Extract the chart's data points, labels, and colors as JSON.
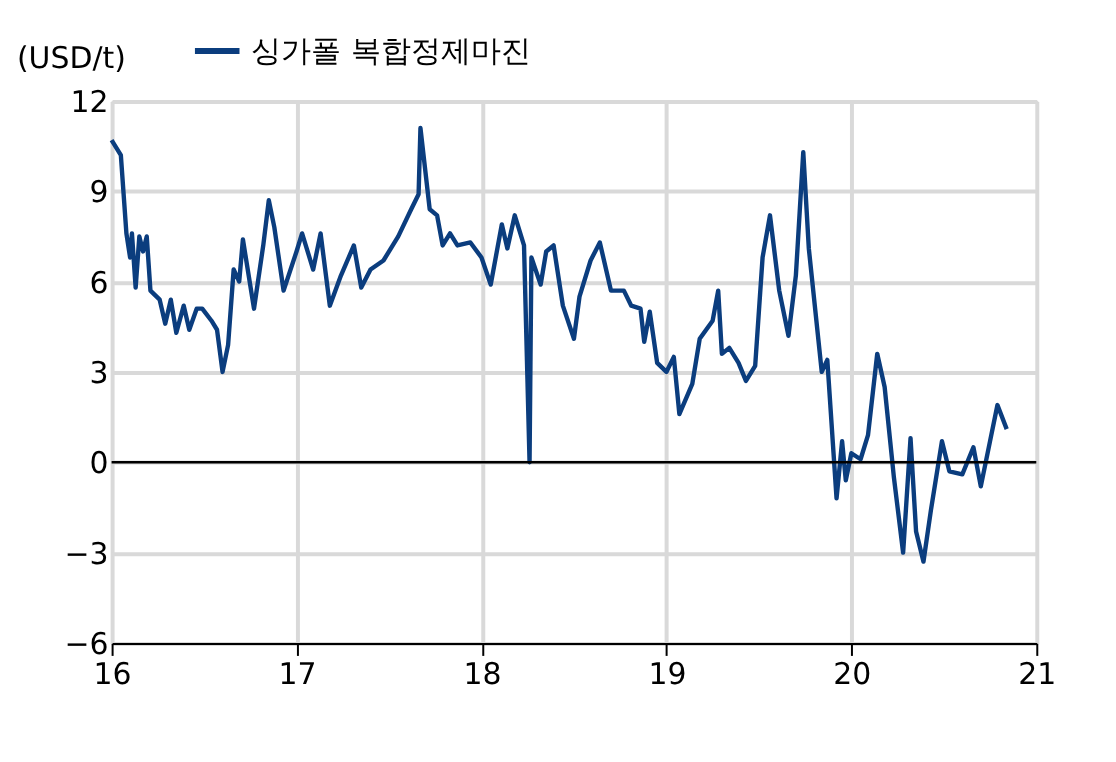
{
  "chart_data": {
    "type": "line",
    "ylabel": "(USD/t)",
    "x": [
      16.0,
      16.03,
      16.05,
      16.08,
      16.1,
      16.11,
      16.13,
      16.15,
      16.17,
      16.19,
      16.21,
      16.26,
      16.29,
      16.32,
      16.35,
      16.39,
      16.42,
      16.46,
      16.49,
      16.54,
      16.57,
      16.6,
      16.63,
      16.66,
      16.69,
      16.71,
      16.77,
      16.82,
      16.85,
      16.88,
      16.93,
      17.0,
      17.03,
      17.09,
      17.13,
      17.18,
      17.24,
      17.31,
      17.35,
      17.4,
      17.47,
      17.55,
      17.62,
      17.66,
      17.67,
      17.72,
      17.76,
      17.79,
      17.83,
      17.87,
      17.94,
      18.0,
      18.05,
      18.11,
      18.14,
      18.18,
      18.23,
      18.26,
      18.27,
      18.32,
      18.35,
      18.39,
      18.44,
      18.5,
      18.53,
      18.59,
      18.64,
      18.7,
      18.77,
      18.81,
      18.86,
      18.88,
      18.91,
      18.95,
      19.0,
      19.04,
      19.07,
      19.14,
      19.18,
      19.25,
      19.28,
      19.3,
      19.34,
      19.39,
      19.43,
      19.48,
      19.52,
      19.56,
      19.61,
      19.66,
      19.7,
      19.74,
      19.77,
      19.84,
      19.87,
      19.92,
      19.95,
      19.97,
      20.0,
      20.05,
      20.09,
      20.14,
      20.18,
      20.23,
      20.28,
      20.32,
      20.35,
      20.39,
      20.43,
      20.49,
      20.53,
      20.6,
      20.66,
      20.7,
      20.75,
      20.79,
      20.84
    ],
    "series": [
      {
        "name": "싱가폴 복합정제마진",
        "color": "#0b3d7e",
        "values": [
          10.7,
          10.4,
          10.2,
          7.6,
          6.8,
          7.6,
          5.8,
          7.5,
          7.0,
          7.5,
          5.7,
          5.4,
          4.6,
          5.4,
          4.3,
          5.2,
          4.4,
          5.1,
          5.1,
          4.7,
          4.4,
          3.0,
          3.9,
          6.4,
          6.0,
          7.4,
          5.1,
          7.2,
          8.7,
          7.8,
          5.7,
          7.0,
          7.6,
          6.4,
          7.6,
          5.2,
          6.2,
          7.2,
          5.8,
          6.4,
          6.7,
          7.5,
          8.4,
          8.9,
          11.1,
          8.4,
          8.2,
          7.2,
          7.6,
          7.2,
          7.3,
          6.8,
          5.9,
          7.9,
          7.1,
          8.2,
          7.2,
          0.0,
          6.8,
          5.9,
          7.0,
          7.2,
          5.2,
          4.1,
          5.5,
          6.7,
          7.3,
          5.7,
          5.7,
          5.2,
          5.1,
          4.0,
          5.0,
          3.3,
          3.0,
          3.5,
          1.6,
          2.6,
          4.1,
          4.7,
          5.7,
          3.6,
          3.8,
          3.3,
          2.7,
          3.2,
          6.8,
          8.2,
          5.7,
          4.2,
          6.2,
          10.3,
          7.1,
          3.0,
          3.4,
          -1.2,
          0.7,
          -0.6,
          0.3,
          0.1,
          0.9,
          3.6,
          2.5,
          -0.5,
          -3.0,
          0.8,
          -2.3,
          -3.3,
          -1.6,
          0.7,
          -0.3,
          -0.4,
          0.5,
          -0.8,
          0.7,
          1.9,
          1.1
        ]
      }
    ],
    "xlim": [
      16,
      21
    ],
    "xticks": [
      16,
      17,
      18,
      19,
      20,
      21
    ],
    "ylim": [
      -6,
      12
    ],
    "yticks": [
      -6,
      -3,
      0,
      3,
      6,
      9,
      12
    ],
    "grid": true,
    "legend": "top",
    "line_style": "solid",
    "marker": "none",
    "ref_lines": [
      {
        "axis": "y",
        "value": 0,
        "color": "#000000"
      }
    ]
  }
}
